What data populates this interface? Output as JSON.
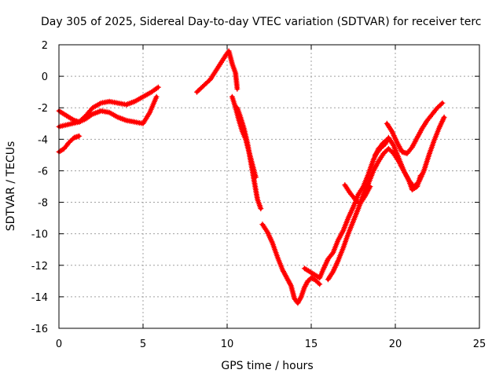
{
  "chart_data": {
    "type": "scatter",
    "title": "Day 305 of 2025, Sidereal Day-to-day VTEC variation (SDTVAR) for receiver terc",
    "xlabel": "GPS time / hours",
    "ylabel": "SDTVAR / TECUs",
    "xlim": [
      0,
      25
    ],
    "ylim": [
      -16,
      2
    ],
    "x_ticks": [
      0,
      5,
      10,
      15,
      20,
      25
    ],
    "y_ticks": [
      2,
      0,
      -2,
      -4,
      -6,
      -8,
      -10,
      -12,
      -14,
      -16
    ],
    "x_tick_labels": [
      "0",
      "5",
      "10",
      "15",
      "20",
      "25"
    ],
    "y_tick_labels": [
      "2",
      "0",
      "-2",
      "-4",
      "-6",
      "-8",
      "-10",
      "-12",
      "-14",
      "-16"
    ],
    "grid": true,
    "marker": "+",
    "series_color": "#ff0000",
    "segments": [
      [
        [
          0.0,
          -2.2
        ],
        [
          0.3,
          -2.4
        ],
        [
          0.6,
          -2.6
        ],
        [
          0.9,
          -2.8
        ],
        [
          1.2,
          -2.9
        ],
        [
          1.6,
          -2.5
        ],
        [
          2.0,
          -2.0
        ],
        [
          2.5,
          -1.7
        ],
        [
          3.0,
          -1.6
        ],
        [
          3.5,
          -1.7
        ],
        [
          4.0,
          -1.8
        ],
        [
          4.5,
          -1.6
        ],
        [
          5.0,
          -1.3
        ],
        [
          5.5,
          -1.0
        ],
        [
          5.9,
          -0.7
        ]
      ],
      [
        [
          0.0,
          -3.2
        ],
        [
          0.4,
          -3.1
        ],
        [
          0.8,
          -3.0
        ],
        [
          1.2,
          -2.9
        ],
        [
          1.6,
          -2.7
        ],
        [
          2.0,
          -2.4
        ],
        [
          2.5,
          -2.2
        ],
        [
          3.0,
          -2.3
        ],
        [
          3.5,
          -2.6
        ],
        [
          4.0,
          -2.8
        ],
        [
          4.5,
          -2.9
        ],
        [
          5.0,
          -3.0
        ],
        [
          5.4,
          -2.3
        ],
        [
          5.8,
          -1.3
        ]
      ],
      [
        [
          0.0,
          -4.8
        ],
        [
          0.3,
          -4.6
        ],
        [
          0.6,
          -4.2
        ],
        [
          0.9,
          -3.9
        ],
        [
          1.2,
          -3.8
        ]
      ],
      [
        [
          8.2,
          -1.0
        ],
        [
          8.6,
          -0.6
        ],
        [
          9.0,
          -0.2
        ],
        [
          9.3,
          0.3
        ],
        [
          9.6,
          0.8
        ],
        [
          9.9,
          1.3
        ],
        [
          10.1,
          1.6
        ],
        [
          10.3,
          0.8
        ],
        [
          10.5,
          0.2
        ],
        [
          10.6,
          -0.8
        ]
      ],
      [
        [
          10.3,
          -1.3
        ],
        [
          10.5,
          -2.0
        ],
        [
          10.7,
          -2.8
        ],
        [
          10.9,
          -3.5
        ],
        [
          11.1,
          -4.0
        ],
        [
          11.3,
          -4.8
        ],
        [
          11.5,
          -5.6
        ],
        [
          11.7,
          -6.4
        ]
      ],
      [
        [
          10.6,
          -2.0
        ],
        [
          10.8,
          -2.6
        ],
        [
          11.0,
          -3.3
        ],
        [
          11.2,
          -4.2
        ],
        [
          11.4,
          -5.4
        ],
        [
          11.6,
          -6.6
        ],
        [
          11.8,
          -7.8
        ],
        [
          12.0,
          -8.4
        ]
      ],
      [
        [
          12.1,
          -9.4
        ],
        [
          12.4,
          -9.9
        ],
        [
          12.7,
          -10.6
        ],
        [
          13.0,
          -11.5
        ],
        [
          13.3,
          -12.3
        ],
        [
          13.6,
          -12.9
        ],
        [
          13.8,
          -13.3
        ],
        [
          14.0,
          -14.1
        ],
        [
          14.2,
          -14.4
        ],
        [
          14.4,
          -14.0
        ],
        [
          14.6,
          -13.4
        ],
        [
          14.8,
          -13.0
        ],
        [
          15.0,
          -12.8
        ],
        [
          15.2,
          -12.9
        ],
        [
          15.5,
          -13.2
        ]
      ],
      [
        [
          14.6,
          -12.2
        ],
        [
          14.9,
          -12.4
        ],
        [
          15.2,
          -12.6
        ],
        [
          15.5,
          -12.8
        ],
        [
          15.7,
          -12.3
        ],
        [
          16.0,
          -11.6
        ],
        [
          16.3,
          -11.2
        ],
        [
          16.6,
          -10.4
        ],
        [
          16.9,
          -9.8
        ],
        [
          17.2,
          -9.0
        ],
        [
          17.5,
          -8.3
        ],
        [
          17.8,
          -7.5
        ],
        [
          18.1,
          -7.0
        ],
        [
          18.4,
          -6.2
        ],
        [
          18.7,
          -5.3
        ],
        [
          19.0,
          -4.6
        ],
        [
          19.3,
          -4.2
        ],
        [
          19.6,
          -4.0
        ]
      ],
      [
        [
          16.0,
          -12.9
        ],
        [
          16.3,
          -12.4
        ],
        [
          16.6,
          -11.7
        ],
        [
          16.9,
          -10.9
        ],
        [
          17.2,
          -10.0
        ],
        [
          17.5,
          -9.2
        ],
        [
          17.8,
          -8.4
        ],
        [
          18.1,
          -7.5
        ],
        [
          18.4,
          -6.8
        ],
        [
          18.7,
          -6.0
        ],
        [
          19.0,
          -5.4
        ],
        [
          19.3,
          -4.9
        ],
        [
          19.6,
          -4.6
        ],
        [
          19.9,
          -4.9
        ],
        [
          20.2,
          -5.4
        ],
        [
          20.5,
          -6.0
        ],
        [
          20.8,
          -6.6
        ],
        [
          21.1,
          -7.0
        ],
        [
          21.4,
          -6.7
        ],
        [
          21.7,
          -6.0
        ],
        [
          22.0,
          -5.0
        ],
        [
          22.3,
          -4.1
        ],
        [
          22.6,
          -3.3
        ],
        [
          22.9,
          -2.6
        ]
      ],
      [
        [
          17.0,
          -6.9
        ],
        [
          17.3,
          -7.4
        ],
        [
          17.6,
          -7.8
        ],
        [
          17.9,
          -8.1
        ],
        [
          18.2,
          -7.6
        ],
        [
          18.5,
          -7.0
        ]
      ],
      [
        [
          18.8,
          -5.0
        ],
        [
          19.1,
          -4.6
        ],
        [
          19.4,
          -4.3
        ],
        [
          19.6,
          -3.9
        ],
        [
          19.9,
          -4.4
        ],
        [
          20.2,
          -5.2
        ],
        [
          20.5,
          -6.0
        ],
        [
          20.8,
          -6.6
        ],
        [
          21.0,
          -7.2
        ],
        [
          21.3,
          -7.0
        ],
        [
          21.5,
          -6.3
        ]
      ],
      [
        [
          19.5,
          -3.0
        ],
        [
          19.8,
          -3.5
        ],
        [
          20.1,
          -4.2
        ],
        [
          20.4,
          -4.8
        ],
        [
          20.7,
          -4.9
        ],
        [
          21.0,
          -4.5
        ],
        [
          21.3,
          -3.9
        ],
        [
          21.6,
          -3.3
        ],
        [
          21.9,
          -2.8
        ],
        [
          22.2,
          -2.4
        ],
        [
          22.5,
          -2.0
        ],
        [
          22.8,
          -1.7
        ]
      ]
    ]
  }
}
